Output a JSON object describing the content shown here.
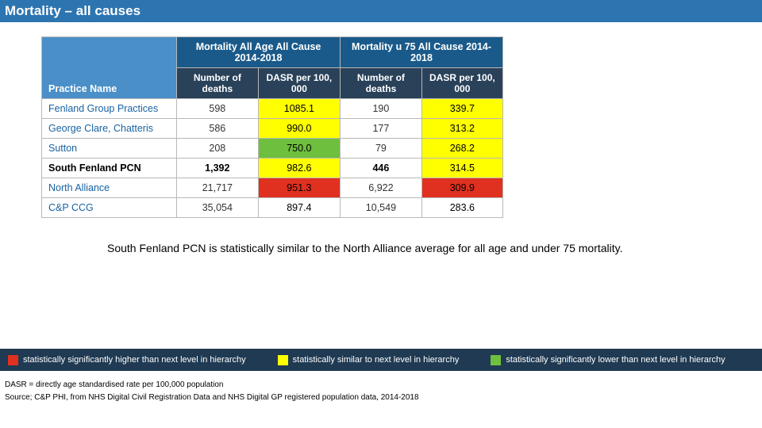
{
  "title": "Mortality – all causes",
  "table": {
    "practice_label": "Practice Name",
    "group_headers": [
      "Mortality All Age All Cause 2014-2018",
      "Mortality u 75 All Cause 2014-2018"
    ],
    "sub_headers": [
      "Number of deaths",
      "DASR per 100, 000",
      "Number of deaths",
      "DASR per 100, 000"
    ],
    "rows": [
      {
        "name": "Fenland Group Practices",
        "bold": false,
        "deaths_all": "598",
        "dasr_all": {
          "val": "1085.1",
          "bg": "#ffff00"
        },
        "deaths_u75": "190",
        "dasr_u75": {
          "val": "339.7",
          "bg": "#ffff00"
        }
      },
      {
        "name": "George Clare, Chatteris",
        "bold": false,
        "deaths_all": "586",
        "dasr_all": {
          "val": "990.0",
          "bg": "#ffff00"
        },
        "deaths_u75": "177",
        "dasr_u75": {
          "val": "313.2",
          "bg": "#ffff00"
        }
      },
      {
        "name": "Sutton",
        "bold": false,
        "deaths_all": "208",
        "dasr_all": {
          "val": "750.0",
          "bg": "#6fbf3f"
        },
        "deaths_u75": "79",
        "dasr_u75": {
          "val": "268.2",
          "bg": "#ffff00"
        }
      },
      {
        "name": "South Fenland PCN",
        "bold": true,
        "deaths_all": "1,392",
        "dasr_all": {
          "val": "982.6",
          "bg": "#ffff00"
        },
        "deaths_u75": "446",
        "dasr_u75": {
          "val": "314.5",
          "bg": "#ffff00"
        }
      },
      {
        "name": "North Alliance",
        "bold": false,
        "deaths_all": "21,717",
        "dasr_all": {
          "val": "951.3",
          "bg": "#e03020"
        },
        "deaths_u75": "6,922",
        "dasr_u75": {
          "val": "309.9",
          "bg": "#e03020"
        }
      },
      {
        "name": "C&P CCG",
        "bold": false,
        "deaths_all": "35,054",
        "dasr_all": {
          "val": "897.4",
          "bg": "#ffffff"
        },
        "deaths_u75": "10,549",
        "dasr_u75": {
          "val": "283.6",
          "bg": "#ffffff"
        }
      }
    ]
  },
  "caption": "South Fenland PCN is statistically similar to the North Alliance average for all age and under 75 mortality.",
  "legend": [
    {
      "color": "#e03020",
      "text": "statistically significantly higher than next level in hierarchy"
    },
    {
      "color": "#ffff00",
      "text": "statistically similar to next level in hierarchy"
    },
    {
      "color": "#6fbf3f",
      "text": "statistically significantly lower than next level in hierarchy"
    }
  ],
  "footnotes": [
    "DASR = directly age standardised rate per 100,000 population",
    "Source; C&P PHI, from NHS Digital Civil Registration Data and NHS Digital GP registered population data, 2014-2018"
  ]
}
